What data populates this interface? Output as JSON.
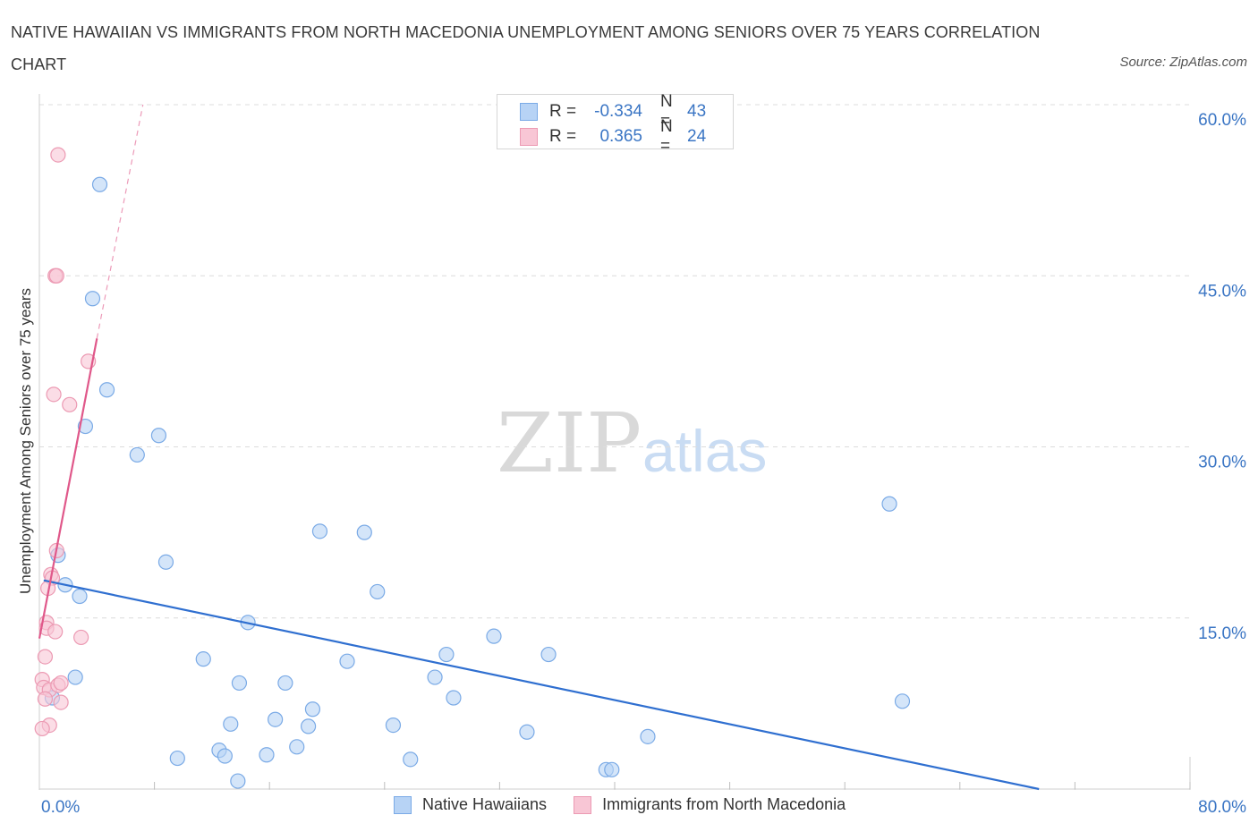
{
  "title": "NATIVE HAWAIIAN VS IMMIGRANTS FROM NORTH MACEDONIA UNEMPLOYMENT AMONG SENIORS OVER 75 YEARS CORRELATION CHART",
  "source": "Source: ZipAtlas.com",
  "watermark": {
    "zip": "ZIP",
    "atlas": "atlas"
  },
  "legend": {
    "r_label": "R =",
    "n_label": "N =",
    "series": [
      {
        "r": "-0.334",
        "n": "43"
      },
      {
        "r": "0.365",
        "n": "24"
      }
    ]
  },
  "bottom_legend": [
    "Native Hawaiians",
    "Immigrants from North Macedonia"
  ],
  "colors": {
    "blue_fill": "#b7d3f5",
    "blue_stroke": "#7aaae6",
    "blue_line": "#2f6fd0",
    "pink_fill": "#f8c6d5",
    "pink_stroke": "#ec9ab3",
    "pink_line": "#e0588a",
    "axis_text": "#3a75c4",
    "grid": "#dcdcdc"
  },
  "chart_data": {
    "type": "scatter",
    "title": "NATIVE HAWAIIAN VS IMMIGRANTS FROM NORTH MACEDONIA UNEMPLOYMENT AMONG SENIORS OVER 75 YEARS CORRELATION CHART",
    "xlabel": "",
    "ylabel": "Unemployment Among Seniors over 75 years",
    "xlim": [
      0,
      80
    ],
    "ylim": [
      0,
      60
    ],
    "x_tick_labels": [
      "0.0%",
      "80.0%"
    ],
    "y_ticks": [
      15,
      30,
      45,
      60
    ],
    "y_tick_labels": [
      "15.0%",
      "30.0%",
      "45.0%",
      "60.0%"
    ],
    "grid": true,
    "series": [
      {
        "name": "Native Hawaiians",
        "r": -0.334,
        "n": 43,
        "points": [
          [
            4.2,
            53.0
          ],
          [
            3.7,
            43.0
          ],
          [
            4.7,
            35.0
          ],
          [
            3.2,
            31.8
          ],
          [
            8.3,
            31.0
          ],
          [
            6.8,
            29.3
          ],
          [
            1.3,
            20.5
          ],
          [
            8.8,
            19.9
          ],
          [
            1.8,
            17.9
          ],
          [
            2.8,
            16.9
          ],
          [
            14.5,
            14.6
          ],
          [
            19.5,
            22.6
          ],
          [
            22.6,
            22.5
          ],
          [
            23.5,
            17.3
          ],
          [
            28.3,
            11.8
          ],
          [
            31.6,
            13.4
          ],
          [
            35.4,
            11.8
          ],
          [
            11.4,
            11.4
          ],
          [
            21.4,
            11.2
          ],
          [
            0.9,
            8.0
          ],
          [
            2.5,
            9.8
          ],
          [
            13.9,
            9.3
          ],
          [
            17.1,
            9.3
          ],
          [
            27.5,
            9.8
          ],
          [
            28.8,
            8.0
          ],
          [
            19.0,
            7.0
          ],
          [
            13.3,
            5.7
          ],
          [
            16.4,
            6.1
          ],
          [
            18.7,
            5.5
          ],
          [
            24.6,
            5.6
          ],
          [
            33.9,
            5.0
          ],
          [
            42.3,
            4.6
          ],
          [
            12.5,
            3.4
          ],
          [
            12.9,
            2.9
          ],
          [
            15.8,
            3.0
          ],
          [
            17.9,
            3.7
          ],
          [
            9.6,
            2.7
          ],
          [
            25.8,
            2.6
          ],
          [
            39.4,
            1.7
          ],
          [
            39.8,
            1.7
          ],
          [
            13.8,
            0.7
          ],
          [
            59.1,
            25.0
          ],
          [
            60.0,
            7.7
          ]
        ],
        "trend": {
          "x": [
            0.3,
            69.5
          ],
          "y": [
            18.3,
            0.0
          ]
        }
      },
      {
        "name": "Immigrants from North Macedonia",
        "r": 0.365,
        "n": 24,
        "points": [
          [
            1.3,
            55.6
          ],
          [
            1.1,
            45.0
          ],
          [
            1.2,
            45.0
          ],
          [
            3.4,
            37.5
          ],
          [
            1.0,
            34.6
          ],
          [
            2.1,
            33.7
          ],
          [
            1.2,
            20.9
          ],
          [
            0.8,
            18.8
          ],
          [
            0.9,
            18.5
          ],
          [
            0.6,
            17.6
          ],
          [
            0.5,
            14.6
          ],
          [
            0.5,
            14.1
          ],
          [
            1.1,
            13.8
          ],
          [
            2.9,
            13.3
          ],
          [
            0.4,
            11.6
          ],
          [
            0.2,
            9.6
          ],
          [
            0.3,
            8.9
          ],
          [
            0.7,
            8.7
          ],
          [
            1.3,
            9.1
          ],
          [
            1.5,
            9.3
          ],
          [
            0.4,
            7.9
          ],
          [
            1.5,
            7.6
          ],
          [
            0.7,
            5.6
          ],
          [
            0.2,
            5.3
          ]
        ],
        "trend": {
          "x": [
            0.0,
            4.0
          ],
          "y": [
            13.2,
            39.5
          ]
        },
        "trend_extension": {
          "x": [
            4.0,
            7.2
          ],
          "y": [
            39.5,
            60.0
          ]
        }
      }
    ]
  }
}
